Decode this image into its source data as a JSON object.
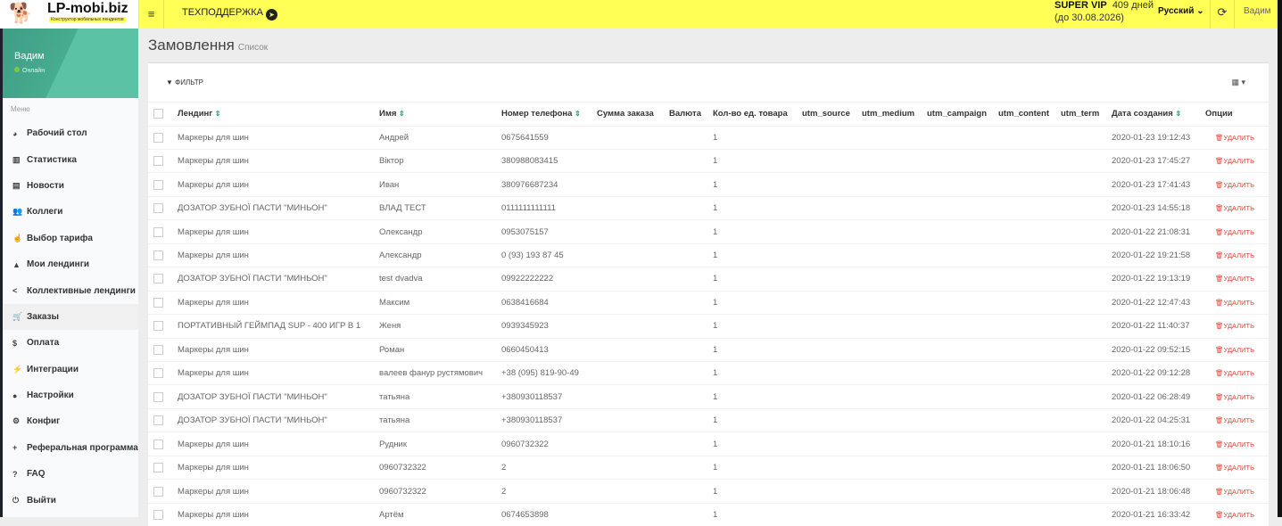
{
  "header": {
    "brand": "LP-mobi.biz",
    "tagline": "Конструктор мобильных лендингов",
    "support": "ТЕХПОДДЕРЖКА",
    "plan": "SUPER VIP",
    "days": "409 дней",
    "until": "(до 30.08.2026)",
    "language": "Русский",
    "user": "Вадим"
  },
  "sidebar": {
    "user": "Вадим",
    "status": "Онлайн",
    "menu_header": "Меню",
    "items": [
      {
        "label": "Рабочий стол",
        "icon": "dashboard-icon",
        "glyph": "◕"
      },
      {
        "label": "Статистика",
        "icon": "bar-chart-icon",
        "glyph": "▥"
      },
      {
        "label": "Новости",
        "icon": "newspaper-icon",
        "glyph": "▤"
      },
      {
        "label": "Коллеги",
        "icon": "users-icon",
        "glyph": "👥"
      },
      {
        "label": "Выбор тарифа",
        "icon": "hand-pointer-icon",
        "glyph": "☝"
      },
      {
        "label": "Мои лендинги",
        "icon": "building-icon",
        "glyph": "▲"
      },
      {
        "label": "Коллективные лендинги",
        "icon": "share-icon",
        "glyph": "<"
      },
      {
        "label": "Заказы",
        "icon": "cart-icon",
        "glyph": "🛒",
        "active": true
      },
      {
        "label": "Оплата",
        "icon": "dollar-icon",
        "glyph": "$"
      },
      {
        "label": "Интеграции",
        "icon": "plug-icon",
        "glyph": "⚡"
      },
      {
        "label": "Настройки",
        "icon": "user-icon",
        "glyph": "●"
      },
      {
        "label": "Конфиг",
        "icon": "cogs-icon",
        "glyph": "⚙"
      },
      {
        "label": "Реферальная программа",
        "icon": "user-plus-icon",
        "glyph": "+"
      },
      {
        "label": "FAQ",
        "icon": "question-icon",
        "glyph": "?"
      },
      {
        "label": "Выйти",
        "icon": "power-icon",
        "glyph": "⏻"
      }
    ]
  },
  "page": {
    "title": "Замовлення",
    "subtitle": "Список",
    "filter": "ФИЛЬТР"
  },
  "table": {
    "columns": [
      "Лендинг",
      "Имя",
      "Номер телефона",
      "Сумма заказа",
      "Валюта",
      "Кол-во ед. товара",
      "utm_source",
      "utm_medium",
      "utm_campaign",
      "utm_content",
      "utm_term",
      "Дата создания",
      "Опции"
    ],
    "sortable": [
      true,
      true,
      true,
      false,
      false,
      false,
      false,
      false,
      false,
      false,
      false,
      true,
      false
    ],
    "delete_label": "УДАЛИТЬ",
    "rows": [
      [
        "Маркеры для шин",
        "Андрей",
        "0675641559",
        "1",
        "2020-01-23 19:12:43"
      ],
      [
        "Маркеры для шин",
        "Віктор",
        "380988083415",
        "1",
        "2020-01-23 17:45:27"
      ],
      [
        "Маркеры для шин",
        "Иван",
        "380976687234",
        "1",
        "2020-01-23 17:41:43"
      ],
      [
        "ДОЗАТОР ЗУБНОЇ ПАСТИ \"МИНЬОН\"",
        "ВЛАД ТЕСТ",
        "0111111111111",
        "1",
        "2020-01-23 14:55:18"
      ],
      [
        "Маркеры для шин",
        "Олександр",
        "0953075157",
        "1",
        "2020-01-22 21:08:31"
      ],
      [
        "Маркеры для шин",
        "Александр",
        "0 (93) 193 87 45",
        "1",
        "2020-01-22 19:21:58"
      ],
      [
        "ДОЗАТОР ЗУБНОЇ ПАСТИ \"МИНЬОН\"",
        "test dvadva",
        "09922222222",
        "1",
        "2020-01-22 19:13:19"
      ],
      [
        "Маркеры для шин",
        "Максим",
        "0638416684",
        "1",
        "2020-01-22 12:47:43"
      ],
      [
        "ПОРТАТИВНЫЙ ГЕЙМПАД SUP - 400 ИГР В 1",
        "Женя",
        "0939345923",
        "1",
        "2020-01-22 11:40:37"
      ],
      [
        "Маркеры для шин",
        "Роман",
        "0660450413",
        "1",
        "2020-01-22 09:52:15"
      ],
      [
        "Маркеры для шин",
        "валеев фанур рустямович",
        "+38 (095) 819-90-49",
        "1",
        "2020-01-22 09:12:28"
      ],
      [
        "ДОЗАТОР ЗУБНОЇ ПАСТИ \"МИНЬОН\"",
        "татьяна",
        "+380930118537",
        "1",
        "2020-01-22 06:28:49"
      ],
      [
        "ДОЗАТОР ЗУБНОЇ ПАСТИ \"МИНЬОН\"",
        "татьяна",
        "+380930118537",
        "1",
        "2020-01-22 04:25:31"
      ],
      [
        "Маркеры для шин",
        "Рудник",
        "0960732322",
        "1",
        "2020-01-21 18:10:16"
      ],
      [
        "Маркеры для шин",
        "0960732322",
        "2",
        "1",
        "2020-01-21 18:06:50"
      ],
      [
        "Маркеры для шин",
        "0960732322",
        "2",
        "1",
        "2020-01-21 18:06:48"
      ],
      [
        "Маркеры для шин",
        "Артём",
        "0674653898",
        "1",
        "2020-01-21 16:33:42"
      ]
    ]
  }
}
